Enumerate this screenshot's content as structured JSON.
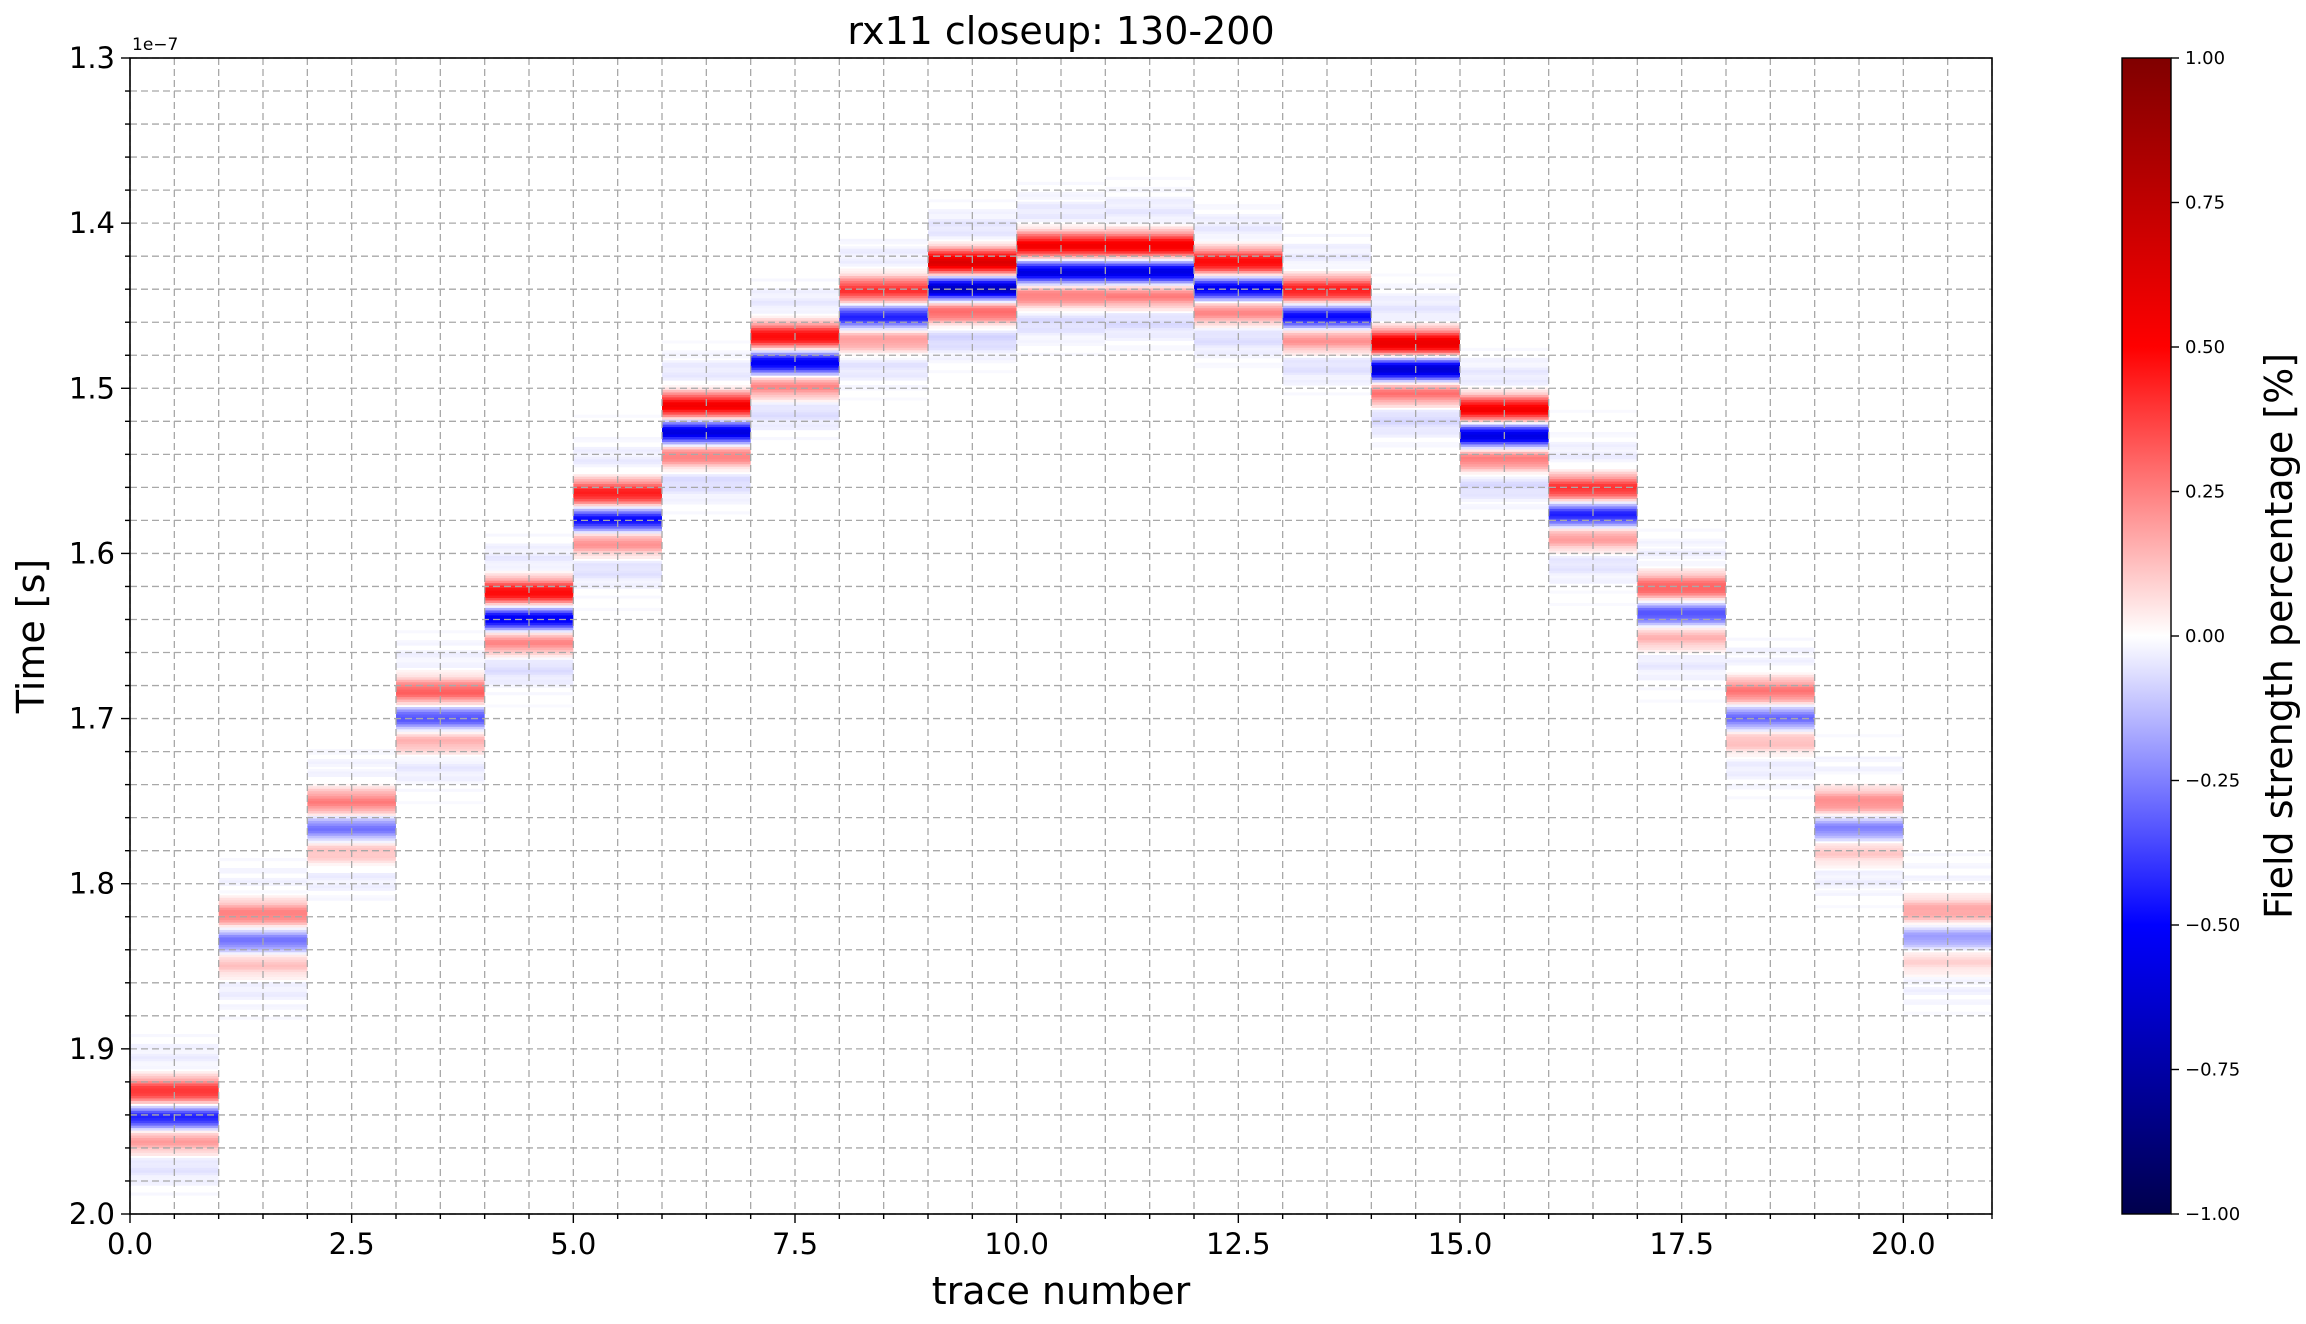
{
  "chart_data": {
    "type": "heatmap",
    "title": "rx11 closeup: 130-200",
    "xlabel": "trace number",
    "ylabel": "Time [s]",
    "y_offset_text": "1e−7",
    "xlim": [
      0,
      21
    ],
    "ylim": [
      2.0,
      1.3
    ],
    "y_inverted": true,
    "y_unit_multiplier": 1e-07,
    "x_ticks": [
      0.0,
      2.5,
      5.0,
      7.5,
      10.0,
      12.5,
      15.0,
      17.5,
      20.0
    ],
    "x_tick_labels": [
      "0.0",
      "2.5",
      "5.0",
      "7.5",
      "10.0",
      "12.5",
      "15.0",
      "17.5",
      "20.0"
    ],
    "y_ticks": [
      1.3,
      1.4,
      1.5,
      1.6,
      1.7,
      1.8,
      1.9,
      2.0
    ],
    "y_tick_labels": [
      "1.3",
      "1.4",
      "1.5",
      "1.6",
      "1.7",
      "1.8",
      "1.9",
      "2.0"
    ],
    "grid": true,
    "colormap": "seismic",
    "colorbar": {
      "label": "Field strength percentage [%]",
      "vmin": -1.0,
      "vmax": 1.0,
      "ticks": [
        1.0,
        0.75,
        0.5,
        0.25,
        0.0,
        -0.25,
        -0.5,
        -0.75,
        -1.0
      ],
      "tick_labels": [
        "1.00",
        "0.75",
        "0.50",
        "0.25",
        "0.00",
        "−0.25",
        "−0.50",
        "−0.75",
        "−1.00"
      ],
      "colors": [
        "#00004c",
        "#0000ff",
        "#ffffff",
        "#ff0000",
        "#800000"
      ]
    },
    "traces": [
      {
        "trace": 0,
        "arrival": 1.935,
        "amplitude": 0.45
      },
      {
        "trace": 1,
        "arrival": 1.828,
        "amplitude": 0.28
      },
      {
        "trace": 2,
        "arrival": 1.76,
        "amplitude": 0.28
      },
      {
        "trace": 3,
        "arrival": 1.693,
        "amplitude": 0.35
      },
      {
        "trace": 4,
        "arrival": 1.633,
        "amplitude": 0.55
      },
      {
        "trace": 5,
        "arrival": 1.573,
        "amplitude": 0.5
      },
      {
        "trace": 6,
        "arrival": 1.52,
        "amplitude": 0.6
      },
      {
        "trace": 7,
        "arrival": 1.478,
        "amplitude": 0.55
      },
      {
        "trace": 8,
        "arrival": 1.45,
        "amplitude": 0.45
      },
      {
        "trace": 9,
        "arrival": 1.433,
        "amplitude": 0.7
      },
      {
        "trace": 10,
        "arrival": 1.423,
        "amplitude": 0.6
      },
      {
        "trace": 11,
        "arrival": 1.423,
        "amplitude": 0.6
      },
      {
        "trace": 12,
        "arrival": 1.433,
        "amplitude": 0.55
      },
      {
        "trace": 13,
        "arrival": 1.45,
        "amplitude": 0.5
      },
      {
        "trace": 14,
        "arrival": 1.482,
        "amplitude": 0.65
      },
      {
        "trace": 15,
        "arrival": 1.522,
        "amplitude": 0.6
      },
      {
        "trace": 16,
        "arrival": 1.57,
        "amplitude": 0.45
      },
      {
        "trace": 17,
        "arrival": 1.63,
        "amplitude": 0.35
      },
      {
        "trace": 18,
        "arrival": 1.693,
        "amplitude": 0.3
      },
      {
        "trace": 19,
        "arrival": 1.76,
        "amplitude": 0.25
      },
      {
        "trace": 20,
        "arrival": 1.826,
        "amplitude": 0.2
      }
    ]
  }
}
